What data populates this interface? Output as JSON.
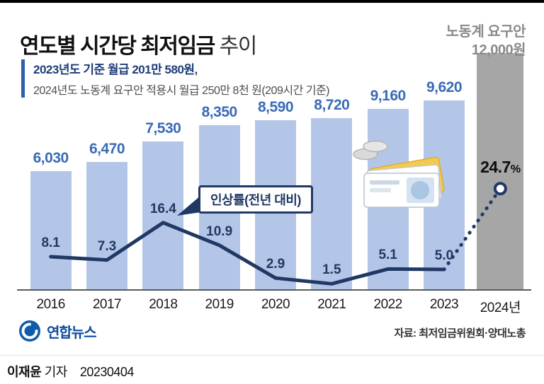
{
  "header": {
    "title_main": "연도별 시간당 최저임금",
    "title_tail": "추이",
    "subtitle_bold": "2023년도 기준 월급 201만 580원,",
    "subtitle_gray": "2024년도 노동계 요구안 적용시 월급 250만 8천 원(209시간 기준)",
    "demand_line1": "노동계 요구안",
    "demand_line2": "12,000원"
  },
  "chart_data": {
    "type": "bar",
    "title": "연도별 시간당 최저임금 추이",
    "categories": [
      "2016",
      "2017",
      "2018",
      "2019",
      "2020",
      "2021",
      "2022",
      "2023",
      "2024년"
    ],
    "series": [
      {
        "name": "시간당 최저임금(원)",
        "type": "bar",
        "values": [
          6030,
          6470,
          7530,
          8350,
          8590,
          8720,
          9160,
          9620,
          12000
        ],
        "labels": [
          "6,030",
          "6,470",
          "7,530",
          "8,350",
          "8,590",
          "8,720",
          "9,160",
          "9,620",
          "12,000"
        ]
      },
      {
        "name": "인상률(전년 대비, %)",
        "type": "line",
        "values": [
          8.1,
          7.3,
          16.4,
          10.9,
          2.9,
          1.5,
          5.1,
          5.0,
          24.7
        ],
        "labels": [
          "8.1",
          "7.3",
          "16.4",
          "10.9",
          "2.9",
          "1.5",
          "5.1",
          "5.0",
          "24.7"
        ]
      }
    ],
    "annotation_label": "인상률(전년 대비)",
    "final_rate": {
      "value": "24.7",
      "unit": "%"
    },
    "ylim": [
      0,
      12000
    ],
    "legend_position": "none",
    "grid": false,
    "colors": {
      "bar": "#b4c6e7",
      "bar_final": "#a6a6a6",
      "line": "#203864",
      "value_label": "#3a6bb5"
    }
  },
  "footer": {
    "logo_text": "연합뉴스",
    "source": "자료: 최저임금위원회·양대노총"
  },
  "credit": {
    "name": "이재윤",
    "role": "기자",
    "date": "20230404"
  }
}
